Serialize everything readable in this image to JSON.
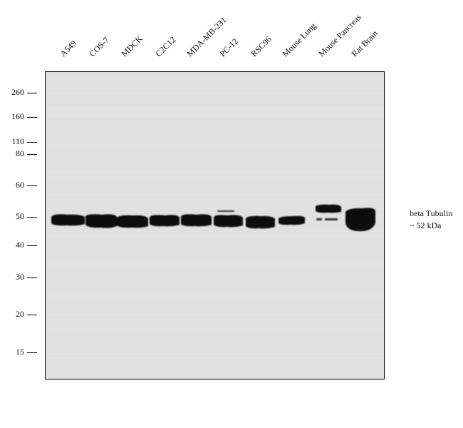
{
  "lanes": [
    "A549",
    "COS-7",
    "MDCK",
    "C2C12",
    "MDA-MB-231",
    "PC-12",
    "RSC96",
    "Mouse Lung",
    "Mouse Pancreas",
    "Rat Brain"
  ],
  "markers": [
    "260",
    "160",
    "110",
    "80",
    "60",
    "50",
    "40",
    "30",
    "20",
    "15"
  ],
  "target": {
    "name": "beta Tubulin",
    "size": "~ 52 kDa"
  }
}
